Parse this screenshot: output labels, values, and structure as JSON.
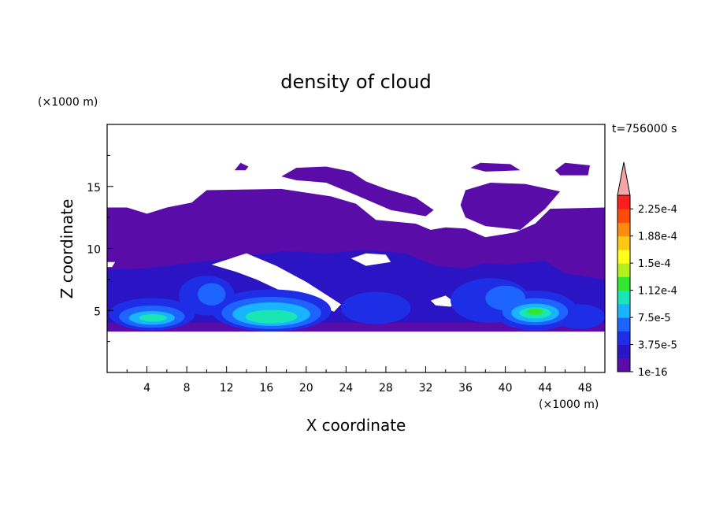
{
  "chart_data": {
    "type": "heatmap",
    "title": "density of cloud",
    "xlabel": "X coordinate",
    "ylabel": "Z coordinate",
    "x_unit": "(×1000 m)",
    "y_unit": "(×1000 m)",
    "time_label": "t=756000 s",
    "xlim": [
      0,
      50
    ],
    "ylim": [
      0,
      20
    ],
    "x_ticks": [
      4,
      8,
      12,
      16,
      20,
      24,
      28,
      32,
      36,
      40,
      44,
      48
    ],
    "y_ticks": [
      5,
      10,
      15
    ],
    "colorbar": {
      "levels": [
        "1e-16",
        "3.75e-5",
        "7.5e-5",
        "1.12e-4",
        "1.5e-4",
        "1.88e-4",
        "2.25e-4"
      ],
      "colors": [
        "#5a0ca8",
        "#2b14c4",
        "#1e2ee6",
        "#1e64ff",
        "#19b4ff",
        "#19e6b4",
        "#32e632",
        "#b4f01e",
        "#ffff19",
        "#ffc814",
        "#ff8c0f",
        "#ff4b0a",
        "#ff1e1e"
      ],
      "extend_color": "#f4a6a6"
    },
    "cloud_base_km": 3.3,
    "main_layer_top_km": 13.2,
    "upper_patches": [
      {
        "x": [
          12.8,
          14.2
        ],
        "z": [
          16.3,
          16.9
        ]
      },
      {
        "x": [
          17.5,
          33
        ],
        "z": [
          12.6,
          16.6
        ]
      },
      {
        "x": [
          36.5,
          41.5
        ],
        "z": [
          16.3,
          16.9
        ]
      },
      {
        "x": [
          45,
          48.5
        ],
        "z": [
          15.9,
          16.9
        ]
      },
      {
        "x": [
          35.5,
          45.5
        ],
        "z": [
          11.5,
          15.3
        ]
      }
    ],
    "core_maxima": [
      {
        "x": 4.5,
        "z": 4.5,
        "value": "1.12e-4"
      },
      {
        "x": 16.5,
        "z": 4.8,
        "value": "1.12e-4"
      },
      {
        "x": 42.5,
        "z": 4.7,
        "value": "1.5e-4"
      }
    ],
    "grid": false
  }
}
